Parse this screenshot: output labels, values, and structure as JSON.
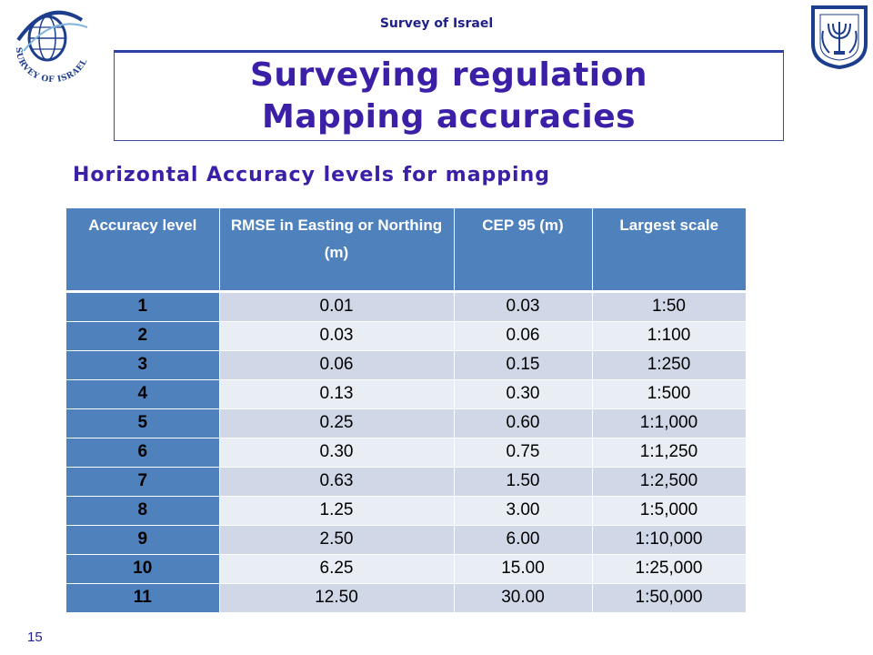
{
  "header": {
    "org_name": "Survey of Israel",
    "logo_text": "SURVEY OF ISRAEL",
    "emblem_icon": "state-emblem-icon",
    "globe_icon": "globe-logo-icon"
  },
  "title": {
    "line1": "Surveying regulation",
    "line2": "Mapping accuracies"
  },
  "subtitle": "Horizontal Accuracy levels for mapping",
  "table": {
    "headers": [
      "Accuracy level",
      "RMSE in Easting or Northing (m)",
      "CEP 95 (m)",
      "Largest scale"
    ],
    "rows": [
      [
        "1",
        "0.01",
        "0.03",
        "1:50"
      ],
      [
        "2",
        "0.03",
        "0.06",
        "1:100"
      ],
      [
        "3",
        "0.06",
        "0.15",
        "1:250"
      ],
      [
        "4",
        "0.13",
        "0.30",
        "1:500"
      ],
      [
        "5",
        "0.25",
        "0.60",
        "1:1,000"
      ],
      [
        "6",
        "0.30",
        "0.75",
        "1:1,250"
      ],
      [
        "7",
        "0.63",
        "1.50",
        "1:2,500"
      ],
      [
        "8",
        "1.25",
        "3.00",
        "1:5,000"
      ],
      [
        "9",
        "2.50",
        "6.00",
        "1:10,000"
      ],
      [
        "10",
        "6.25",
        "15.00",
        "1:25,000"
      ],
      [
        "11",
        "12.50",
        "30.00",
        "1:50,000"
      ]
    ]
  },
  "colors": {
    "header_fill": "#4f81bd",
    "row_odd": "#d0d8e8",
    "row_even": "#e9edf4",
    "title_color": "#3b1fa6"
  },
  "page_number": "15"
}
